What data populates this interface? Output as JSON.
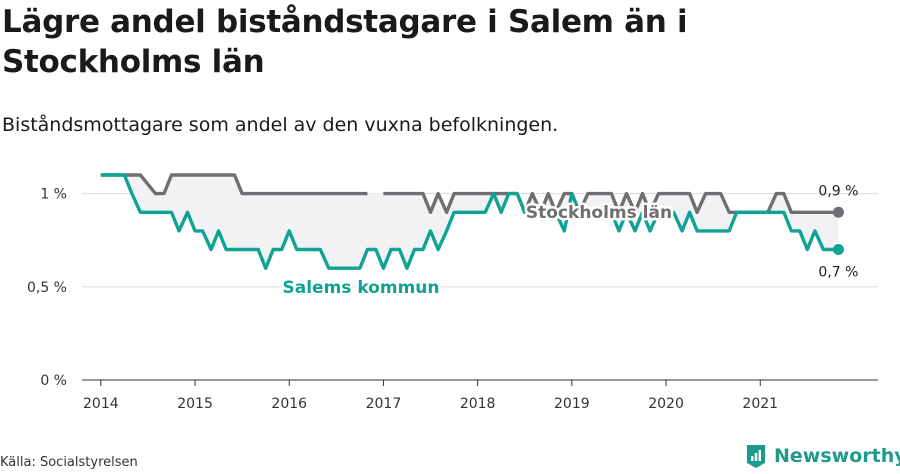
{
  "title": "Lägre andel biståndstagare i Salem än i Stockholms län",
  "subtitle": "Biståndsmottagare som andel av den vuxna befolkningen.",
  "source": "Källa: Socialstyrelsen",
  "brand": {
    "name": "Newsworthy",
    "icon": "newsworthy-logo-icon",
    "color": "#1d9a8a"
  },
  "chart_data": {
    "type": "line",
    "x_range": [
      2013.8,
      2022.25
    ],
    "ylim": [
      0,
      1.1
    ],
    "x_ticks": [
      2014,
      2015,
      2016,
      2017,
      2018,
      2019,
      2020,
      2021
    ],
    "y_ticks": [
      {
        "value": 0,
        "label": "0 %"
      },
      {
        "value": 0.5,
        "label": "0,5 %"
      },
      {
        "value": 1,
        "label": "1 %"
      }
    ],
    "grid": "horizontal",
    "series": [
      {
        "name": "Stockholms län",
        "color": "#6e6e73",
        "end_label": "0,9 %",
        "points": [
          [
            2014.0,
            1.1
          ],
          [
            2014.08,
            1.1
          ],
          [
            2014.17,
            1.1
          ],
          [
            2014.25,
            1.1
          ],
          [
            2014.33,
            1.1
          ],
          [
            2014.42,
            1.1
          ],
          [
            2014.5,
            1.05
          ],
          [
            2014.58,
            1.0
          ],
          [
            2014.67,
            1.0
          ],
          [
            2014.75,
            1.1
          ],
          [
            2014.83,
            1.1
          ],
          [
            2014.92,
            1.1
          ],
          [
            2015.0,
            1.1
          ],
          [
            2015.08,
            1.1
          ],
          [
            2015.17,
            1.1
          ],
          [
            2015.25,
            1.1
          ],
          [
            2015.33,
            1.1
          ],
          [
            2015.42,
            1.1
          ],
          [
            2015.5,
            1.0
          ],
          [
            2015.58,
            1.0
          ],
          [
            2015.67,
            1.0
          ],
          [
            2015.75,
            1.0
          ],
          [
            2015.83,
            1.0
          ],
          [
            2015.92,
            1.0
          ],
          [
            2016.0,
            1.0
          ],
          [
            2016.08,
            1.0
          ],
          [
            2016.17,
            1.0
          ],
          [
            2016.25,
            1.0
          ],
          [
            2016.33,
            1.0
          ],
          [
            2016.42,
            1.0
          ],
          [
            2016.5,
            1.0
          ],
          [
            2016.58,
            1.0
          ],
          [
            2016.67,
            1.0
          ],
          [
            2016.75,
            1.0
          ],
          [
            2016.83,
            1.0
          ],
          [
            null,
            null
          ],
          [
            2017.0,
            1.0
          ],
          [
            2017.08,
            1.0
          ],
          [
            2017.17,
            1.0
          ],
          [
            2017.25,
            1.0
          ],
          [
            2017.33,
            1.0
          ],
          [
            2017.42,
            1.0
          ],
          [
            2017.5,
            0.9
          ],
          [
            2017.58,
            1.0
          ],
          [
            2017.67,
            0.9
          ],
          [
            2017.75,
            1.0
          ],
          [
            2017.83,
            1.0
          ],
          [
            2017.92,
            1.0
          ],
          [
            2018.0,
            1.0
          ],
          [
            2018.08,
            1.0
          ],
          [
            2018.17,
            1.0
          ],
          [
            2018.25,
            1.0
          ],
          [
            2018.33,
            1.0
          ],
          [
            2018.42,
            1.0
          ],
          [
            2018.5,
            0.9
          ],
          [
            2018.58,
            1.0
          ],
          [
            2018.67,
            0.9
          ],
          [
            2018.75,
            1.0
          ],
          [
            2018.83,
            0.9
          ],
          [
            2018.92,
            1.0
          ],
          [
            2019.0,
            1.0
          ],
          [
            2019.08,
            0.9
          ],
          [
            2019.17,
            1.0
          ],
          [
            2019.25,
            1.0
          ],
          [
            2019.33,
            1.0
          ],
          [
            2019.42,
            1.0
          ],
          [
            2019.5,
            0.9
          ],
          [
            2019.58,
            1.0
          ],
          [
            2019.67,
            0.9
          ],
          [
            2019.75,
            1.0
          ],
          [
            2019.83,
            0.9
          ],
          [
            2019.92,
            1.0
          ],
          [
            2020.0,
            1.0
          ],
          [
            2020.08,
            1.0
          ],
          [
            2020.17,
            1.0
          ],
          [
            2020.25,
            1.0
          ],
          [
            2020.33,
            0.9
          ],
          [
            2020.42,
            1.0
          ],
          [
            2020.5,
            1.0
          ],
          [
            2020.58,
            1.0
          ],
          [
            2020.67,
            0.9
          ],
          [
            2020.75,
            0.9
          ],
          [
            2020.83,
            0.9
          ],
          [
            2020.92,
            0.9
          ],
          [
            2021.0,
            0.9
          ],
          [
            2021.08,
            0.9
          ],
          [
            2021.17,
            1.0
          ],
          [
            2021.25,
            1.0
          ],
          [
            2021.33,
            0.9
          ],
          [
            2021.42,
            0.9
          ],
          [
            2021.5,
            0.9
          ],
          [
            2021.58,
            0.9
          ],
          [
            2021.67,
            0.9
          ],
          [
            2021.75,
            0.9
          ],
          [
            2021.83,
            0.9
          ]
        ]
      },
      {
        "name": "Salems kommun",
        "color": "#0fa393",
        "end_label": "0,7 %",
        "points": [
          [
            2014.0,
            1.1
          ],
          [
            2014.08,
            1.1
          ],
          [
            2014.17,
            1.1
          ],
          [
            2014.25,
            1.1
          ],
          [
            2014.33,
            1.0
          ],
          [
            2014.42,
            0.9
          ],
          [
            2014.5,
            0.9
          ],
          [
            2014.58,
            0.9
          ],
          [
            2014.67,
            0.9
          ],
          [
            2014.75,
            0.9
          ],
          [
            2014.83,
            0.8
          ],
          [
            2014.92,
            0.9
          ],
          [
            2015.0,
            0.8
          ],
          [
            2015.08,
            0.8
          ],
          [
            2015.17,
            0.7
          ],
          [
            2015.25,
            0.8
          ],
          [
            2015.33,
            0.7
          ],
          [
            2015.42,
            0.7
          ],
          [
            2015.5,
            0.7
          ],
          [
            2015.58,
            0.7
          ],
          [
            2015.67,
            0.7
          ],
          [
            2015.75,
            0.6
          ],
          [
            2015.83,
            0.7
          ],
          [
            2015.92,
            0.7
          ],
          [
            2016.0,
            0.8
          ],
          [
            2016.08,
            0.7
          ],
          [
            2016.17,
            0.7
          ],
          [
            2016.25,
            0.7
          ],
          [
            2016.33,
            0.7
          ],
          [
            2016.42,
            0.6
          ],
          [
            2016.5,
            0.6
          ],
          [
            2016.58,
            0.6
          ],
          [
            2016.67,
            0.6
          ],
          [
            2016.75,
            0.6
          ],
          [
            2016.83,
            0.7
          ],
          [
            2016.92,
            0.7
          ],
          [
            2017.0,
            0.6
          ],
          [
            2017.08,
            0.7
          ],
          [
            2017.17,
            0.7
          ],
          [
            2017.25,
            0.6
          ],
          [
            2017.33,
            0.7
          ],
          [
            2017.42,
            0.7
          ],
          [
            2017.5,
            0.8
          ],
          [
            2017.58,
            0.7
          ],
          [
            2017.67,
            0.8
          ],
          [
            2017.75,
            0.9
          ],
          [
            2017.83,
            0.9
          ],
          [
            2017.92,
            0.9
          ],
          [
            2018.0,
            0.9
          ],
          [
            2018.08,
            0.9
          ],
          [
            2018.17,
            1.0
          ],
          [
            2018.25,
            0.9
          ],
          [
            2018.33,
            1.0
          ],
          [
            2018.42,
            1.0
          ],
          [
            2018.5,
            0.9
          ],
          [
            2018.58,
            0.9
          ],
          [
            2018.67,
            0.9
          ],
          [
            2018.75,
            0.9
          ],
          [
            2018.83,
            0.9
          ],
          [
            2018.92,
            0.8
          ],
          [
            2019.0,
            1.0
          ],
          [
            2019.08,
            0.9
          ],
          [
            2019.17,
            0.9
          ],
          [
            2019.25,
            0.9
          ],
          [
            2019.33,
            0.9
          ],
          [
            2019.42,
            0.9
          ],
          [
            2019.5,
            0.8
          ],
          [
            2019.58,
            0.9
          ],
          [
            2019.67,
            0.8
          ],
          [
            2019.75,
            0.9
          ],
          [
            2019.83,
            0.8
          ],
          [
            2019.92,
            0.9
          ],
          [
            2020.0,
            0.9
          ],
          [
            2020.08,
            0.9
          ],
          [
            2020.17,
            0.8
          ],
          [
            2020.25,
            0.9
          ],
          [
            2020.33,
            0.8
          ],
          [
            2020.42,
            0.8
          ],
          [
            2020.5,
            0.8
          ],
          [
            2020.58,
            0.8
          ],
          [
            2020.67,
            0.8
          ],
          [
            2020.75,
            0.9
          ],
          [
            2020.83,
            0.9
          ],
          [
            2020.92,
            0.9
          ],
          [
            2021.0,
            0.9
          ],
          [
            2021.08,
            0.9
          ],
          [
            2021.17,
            0.9
          ],
          [
            2021.25,
            0.9
          ],
          [
            2021.33,
            0.8
          ],
          [
            2021.42,
            0.8
          ],
          [
            2021.5,
            0.7
          ],
          [
            2021.58,
            0.8
          ],
          [
            2021.67,
            0.7
          ],
          [
            2021.75,
            0.7
          ],
          [
            2021.83,
            0.7
          ]
        ]
      }
    ]
  }
}
